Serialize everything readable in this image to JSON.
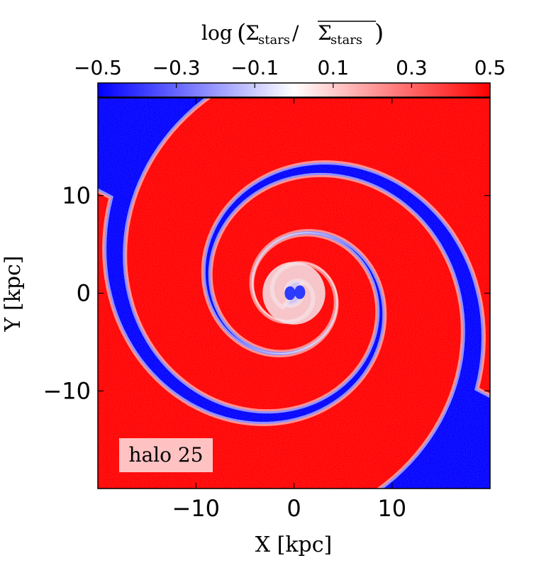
{
  "chart_data": {
    "type": "heatmap",
    "title": "",
    "colorbar": {
      "label": "log (Σstars/Σstars)",
      "label_parts": {
        "prefix": "log",
        "numerator": "Σ",
        "numerator_sub": "stars",
        "slash": "/",
        "denominator": "Σ",
        "denominator_sub": "stars",
        "denominator_overline": true
      },
      "ticks": [
        -0.5,
        -0.3,
        -0.1,
        0.1,
        0.3,
        0.5
      ],
      "tick_labels": [
        "−0.5",
        "−0.3",
        "−0.1",
        "0.1",
        "0.3",
        "0.5"
      ],
      "range": [
        -0.5,
        0.5
      ],
      "colormap": "bwr",
      "colors": {
        "low": "#0000ff",
        "mid": "#ffffff",
        "high": "#ff0000"
      },
      "placement": "top"
    },
    "xlabel": "X [kpc]",
    "ylabel": "Y [kpc]",
    "xlim": [
      -20,
      20
    ],
    "ylim": [
      -20,
      20
    ],
    "xticks": [
      -10,
      0,
      10
    ],
    "xtick_labels": [
      "−10",
      "0",
      "10"
    ],
    "yticks": [
      -10,
      0,
      10
    ],
    "ytick_labels": [
      "−10",
      "0",
      "10"
    ],
    "grid": false,
    "annotation": "halo 25",
    "annotation_placement": "bottom-left",
    "spiral": {
      "arms": 2,
      "center": [
        0,
        0
      ],
      "dominant_pattern": "two-armed logarithmic spiral of overdensity (red) and underdensity (blue)"
    }
  }
}
